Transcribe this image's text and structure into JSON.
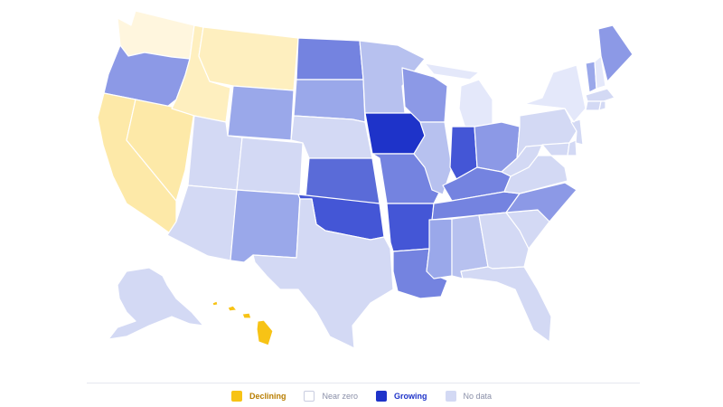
{
  "colors": {
    "declining_strong": "#f7c315",
    "declining_mid": "#fde9a8",
    "declining_light": "#feefbf",
    "declining_faint": "#fff6de",
    "near_zero": "#ffffff",
    "growing_faint": "#e4e8fa",
    "nodata": "#d3d9f4",
    "growing_light": "#b7c1ef",
    "growing_mid": "#9aa8ea",
    "growing_mid2": "#8c99e6",
    "growing_strong": "#7483e0",
    "growing_stronger": "#5a6bd8",
    "growing_deep": "#4456d6",
    "growing_max": "#1e33c9",
    "divider": "#e6e8ef"
  },
  "legend": [
    {
      "label": "Declining",
      "color": "#f7c315",
      "border": "#f7c315"
    },
    {
      "label": "Near zero",
      "color": "#ffffff",
      "border": "#c9cde0"
    },
    {
      "label": "Growing",
      "color": "#1e33c9",
      "border": "#1e33c9"
    },
    {
      "label": "No data",
      "color": "#d3d9f4",
      "border": "#d3d9f4"
    }
  ],
  "states": [
    {
      "id": "WA",
      "fill": "declining_faint"
    },
    {
      "id": "OR",
      "fill": "growing_mid2"
    },
    {
      "id": "CA",
      "fill": "declining_mid"
    },
    {
      "id": "NV",
      "fill": "declining_mid"
    },
    {
      "id": "ID",
      "fill": "declining_light"
    },
    {
      "id": "MT",
      "fill": "declining_light"
    },
    {
      "id": "WY",
      "fill": "growing_mid"
    },
    {
      "id": "UT",
      "fill": "nodata"
    },
    {
      "id": "AZ",
      "fill": "nodata"
    },
    {
      "id": "CO",
      "fill": "nodata"
    },
    {
      "id": "NM",
      "fill": "growing_mid"
    },
    {
      "id": "ND",
      "fill": "growing_strong"
    },
    {
      "id": "SD",
      "fill": "growing_mid"
    },
    {
      "id": "NE",
      "fill": "nodata"
    },
    {
      "id": "KS",
      "fill": "growing_stronger"
    },
    {
      "id": "OK",
      "fill": "growing_deep"
    },
    {
      "id": "TX",
      "fill": "nodata"
    },
    {
      "id": "MN",
      "fill": "growing_light"
    },
    {
      "id": "IA",
      "fill": "growing_max"
    },
    {
      "id": "MO",
      "fill": "growing_strong"
    },
    {
      "id": "AR",
      "fill": "growing_deep"
    },
    {
      "id": "LA",
      "fill": "growing_strong"
    },
    {
      "id": "WI",
      "fill": "growing_mid2"
    },
    {
      "id": "IL",
      "fill": "growing_light"
    },
    {
      "id": "MI",
      "fill": "growing_faint"
    },
    {
      "id": "IN",
      "fill": "growing_deep"
    },
    {
      "id": "OH",
      "fill": "growing_mid2"
    },
    {
      "id": "KY",
      "fill": "growing_strong"
    },
    {
      "id": "TN",
      "fill": "growing_strong"
    },
    {
      "id": "MS",
      "fill": "growing_mid"
    },
    {
      "id": "AL",
      "fill": "growing_light"
    },
    {
      "id": "GA",
      "fill": "nodata"
    },
    {
      "id": "FL",
      "fill": "nodata"
    },
    {
      "id": "SC",
      "fill": "nodata"
    },
    {
      "id": "NC",
      "fill": "growing_mid2"
    },
    {
      "id": "VA",
      "fill": "nodata"
    },
    {
      "id": "WV",
      "fill": "nodata"
    },
    {
      "id": "PA",
      "fill": "nodata"
    },
    {
      "id": "NY",
      "fill": "growing_faint"
    },
    {
      "id": "VT",
      "fill": "growing_mid"
    },
    {
      "id": "NH",
      "fill": "growing_faint"
    },
    {
      "id": "ME",
      "fill": "growing_mid2"
    },
    {
      "id": "MA",
      "fill": "nodata"
    },
    {
      "id": "CT",
      "fill": "nodata"
    },
    {
      "id": "RI",
      "fill": "nodata"
    },
    {
      "id": "NJ",
      "fill": "nodata"
    },
    {
      "id": "DE",
      "fill": "nodata"
    },
    {
      "id": "MD",
      "fill": "nodata"
    },
    {
      "id": "AK",
      "fill": "nodata"
    },
    {
      "id": "HI",
      "fill": "declining_strong"
    }
  ]
}
